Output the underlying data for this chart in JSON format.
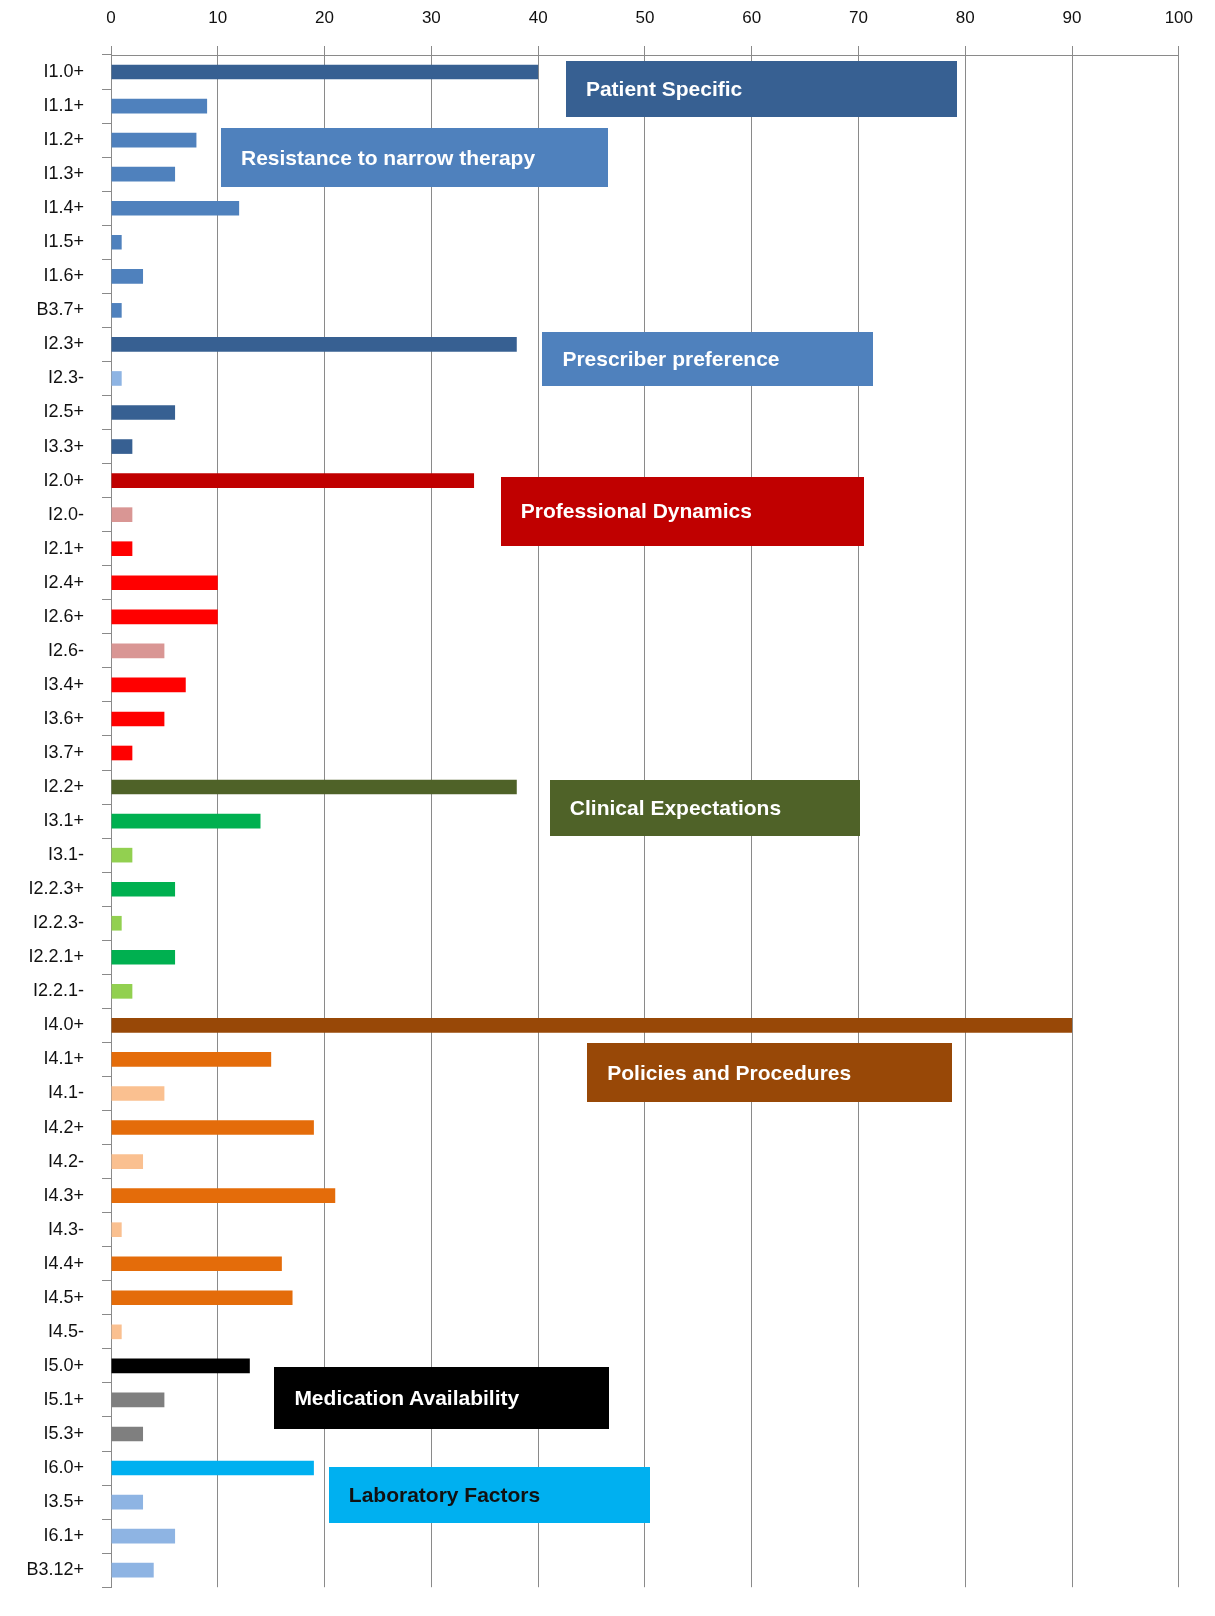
{
  "chart_data": {
    "type": "bar",
    "orientation": "horizontal",
    "categories": [
      "I1.0+",
      "I1.1+",
      "I1.2+",
      "I1.3+",
      "I1.4+",
      "I1.5+",
      "I1.6+",
      "B3.7+",
      "I2.3+",
      "I2.3-",
      "I2.5+",
      "I3.3+",
      "I2.0+",
      "I2.0-",
      "I2.1+",
      "I2.4+",
      "I2.6+",
      "I2.6-",
      "I3.4+",
      "I3.6+",
      "I3.7+",
      "I2.2+",
      "I3.1+",
      "I3.1-",
      "I2.2.3+",
      "I2.2.3-",
      "I2.2.1+",
      "I2.2.1-",
      "I4.0+",
      "I4.1+",
      "I4.1-",
      "I4.2+",
      "I4.2-",
      "I4.3+",
      "I4.3-",
      "I4.4+",
      "I4.5+",
      "I4.5-",
      "I5.0+",
      "I5.1+",
      "I5.3+",
      "I6.0+",
      "I3.5+",
      "I6.1+",
      "B3.12+"
    ],
    "values": [
      40,
      9,
      8,
      6,
      12,
      1,
      3,
      1,
      38,
      1,
      6,
      2,
      34,
      2,
      2,
      10,
      10,
      5,
      7,
      5,
      2,
      38,
      14,
      2,
      6,
      1,
      6,
      2,
      90,
      15,
      5,
      19,
      3,
      21,
      1,
      16,
      17,
      1,
      13,
      5,
      3,
      19,
      3,
      6,
      4
    ],
    "colors": [
      "#376092",
      "#4f81bd",
      "#4f81bd",
      "#4f81bd",
      "#4f81bd",
      "#4f81bd",
      "#4f81bd",
      "#4f81bd",
      "#376092",
      "#8eb4e3",
      "#376092",
      "#376092",
      "#c00000",
      "#d99694",
      "#ff0000",
      "#ff0000",
      "#ff0000",
      "#d99694",
      "#ff0000",
      "#ff0000",
      "#ff0000",
      "#4f6228",
      "#00b050",
      "#92d050",
      "#00b050",
      "#92d050",
      "#00b050",
      "#92d050",
      "#984807",
      "#e46c0a",
      "#fac090",
      "#e46c0a",
      "#fac090",
      "#e46c0a",
      "#fac090",
      "#e46c0a",
      "#e46c0a",
      "#fac090",
      "#000000",
      "#7f7f7f",
      "#7f7f7f",
      "#00b0f0",
      "#8eb4e3",
      "#8eb4e3",
      "#8eb4e3"
    ],
    "xlim": [
      0,
      100
    ],
    "xticks": [
      0,
      10,
      20,
      30,
      40,
      50,
      60,
      70,
      80,
      90,
      100
    ],
    "grid": "x",
    "annotations": [
      "Patient Specific",
      "Resistance to narrow therapy",
      "Prescriber preference",
      "Professional Dynamics",
      "Clinical Expectations",
      "Policies and Procedures",
      "Medication Availability",
      "Laboratory Factors"
    ]
  }
}
